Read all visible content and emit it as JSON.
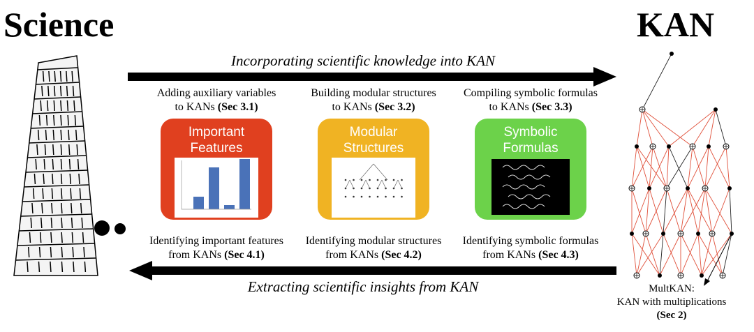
{
  "header": {
    "left": "Science",
    "right": "KAN"
  },
  "top_arrow": {
    "label": "Incorporating scientific knowledge into KAN"
  },
  "bottom_arrow": {
    "label": "Extracting scientific insights from KAN"
  },
  "columns": [
    {
      "top": [
        "Adding auxiliary variables",
        "to KANs",
        "(Sec 3.1)"
      ],
      "card": [
        "Important",
        "Features"
      ],
      "bottom": [
        "Identifying important features",
        "from KANs",
        "(Sec 4.1)"
      ]
    },
    {
      "top": [
        "Building modular structures",
        "to KANs",
        "(Sec 3.2)"
      ],
      "card": [
        "Modular",
        "Structures"
      ],
      "bottom": [
        "Identifying modular structures",
        "from KANs",
        "(Sec 4.2)"
      ]
    },
    {
      "top": [
        "Compiling symbolic formulas",
        "to KANs",
        "(Sec 3.3)"
      ],
      "card": [
        "Symbolic",
        "Formulas"
      ],
      "bottom": [
        "Identifying symbolic formulas",
        "from KANs",
        "(Sec 4.3)"
      ]
    }
  ],
  "network": {
    "caption": [
      "MultKAN:",
      "KAN with multiplications",
      "(Sec 2)"
    ]
  }
}
